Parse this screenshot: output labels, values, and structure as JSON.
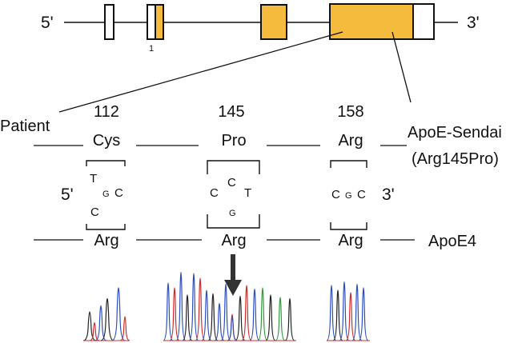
{
  "gene": {
    "five_prime": "5'",
    "three_prime": "3'",
    "exon_number": "1",
    "exon_color": "#f4bb3c"
  },
  "codons": [
    {
      "position": "112",
      "patient_aa": "Cys",
      "reference_aa": "Arg"
    },
    {
      "position": "145",
      "patient_aa": "Pro",
      "reference_aa": "Arg"
    },
    {
      "position": "158",
      "patient_aa": "Arg",
      "reference_aa": "Arg"
    }
  ],
  "labels": {
    "patient": "Patient",
    "variant_line1": "ApoE-Sendai",
    "variant_line2": "(Arg145Pro)",
    "reference": "ApoE4",
    "seq_five_prime": "5'",
    "seq_three_prime": "3'"
  },
  "bases": {
    "codon112": {
      "top": "T",
      "mid": "G",
      "right": "C",
      "low": "C"
    },
    "codon145": {
      "left": "C",
      "top": "C",
      "right": "T",
      "low": "G"
    },
    "codon158": {
      "b1": "C",
      "b2": "G",
      "b3": "C"
    }
  },
  "colors": {
    "T": "#d42a2a",
    "C": "#2a4fc4",
    "G": "#222222",
    "A": "#2e9a3a"
  },
  "arrow_icon": "down-arrow-icon"
}
